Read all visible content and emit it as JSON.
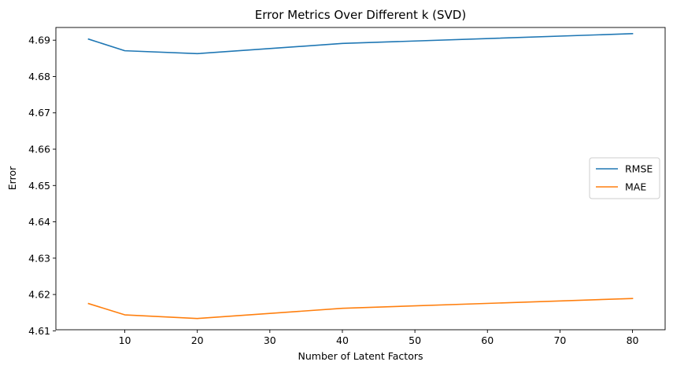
{
  "chart_data": {
    "type": "line",
    "title": "Error Metrics Over Different k (SVD)",
    "xlabel": "Number of Latent Factors",
    "ylabel": "Error",
    "x": [
      5,
      10,
      20,
      40,
      80
    ],
    "xlim": [
      0.5,
      84.5
    ],
    "ylim": [
      4.6103,
      4.6935
    ],
    "xticks": [
      10,
      20,
      30,
      40,
      50,
      60,
      70,
      80
    ],
    "xtick_labels": [
      "10",
      "20",
      "30",
      "40",
      "50",
      "60",
      "70",
      "80"
    ],
    "yticks": [
      4.61,
      4.62,
      4.63,
      4.64,
      4.65,
      4.66,
      4.67,
      4.68,
      4.69
    ],
    "ytick_labels": [
      "4.61",
      "4.62",
      "4.63",
      "4.64",
      "4.65",
      "4.66",
      "4.67",
      "4.68",
      "4.69"
    ],
    "series": [
      {
        "name": "RMSE",
        "color": "#1f77b4",
        "values": [
          4.6903,
          4.6871,
          4.6863,
          4.6891,
          4.6918
        ]
      },
      {
        "name": "MAE",
        "color": "#ff7f0e",
        "values": [
          4.6175,
          4.6144,
          4.6134,
          4.6162,
          4.6189
        ]
      }
    ],
    "legend_position": "center-right",
    "grid": false
  }
}
